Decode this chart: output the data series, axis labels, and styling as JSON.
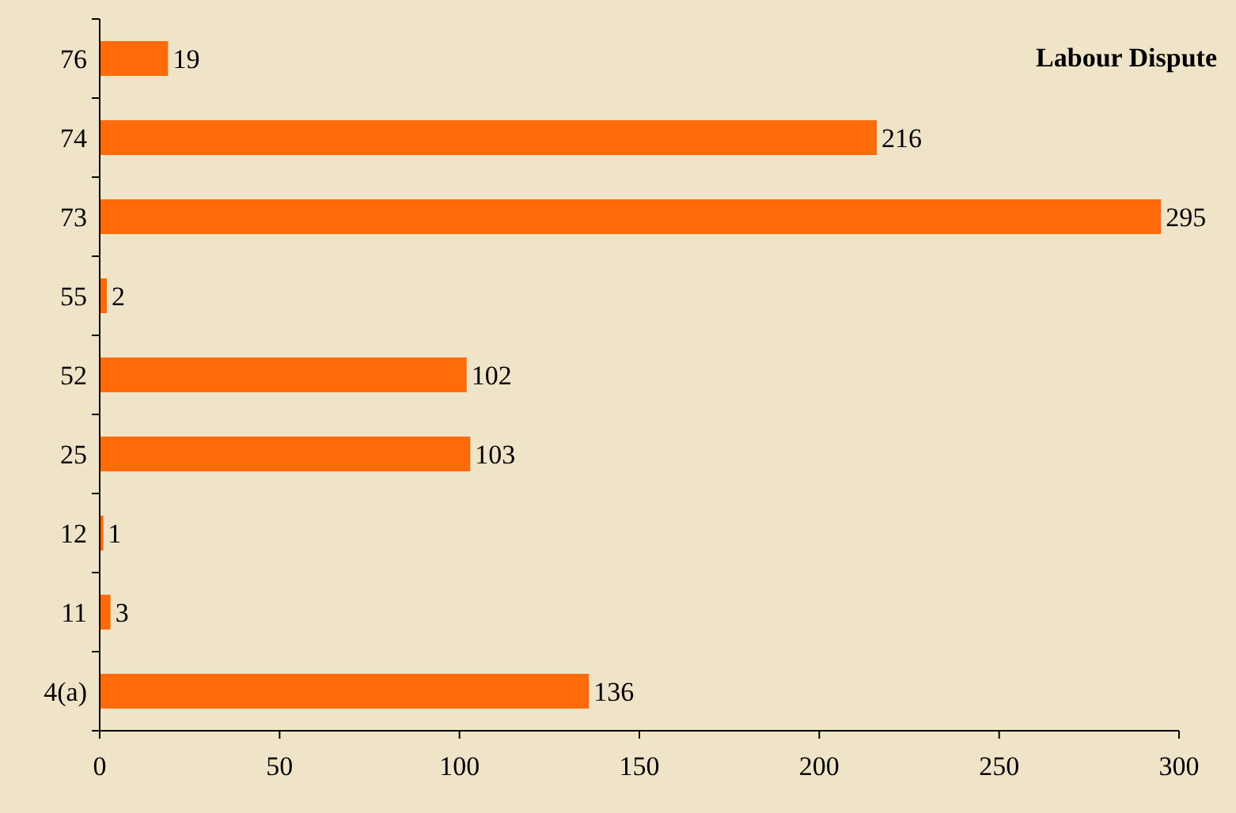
{
  "chart_data": {
    "type": "bar",
    "orientation": "horizontal",
    "title": "Labour Dispute",
    "categories": [
      "76",
      "74",
      "73",
      "55",
      "52",
      "25",
      "12",
      "11",
      "4(a)"
    ],
    "values": [
      19,
      216,
      295,
      2,
      102,
      103,
      1,
      3,
      136
    ],
    "color": "#ff6a0a",
    "xlim": [
      0,
      300
    ],
    "xticks": [
      0,
      50,
      100,
      150,
      200,
      250,
      300
    ],
    "data_labels": true,
    "grid": false
  }
}
